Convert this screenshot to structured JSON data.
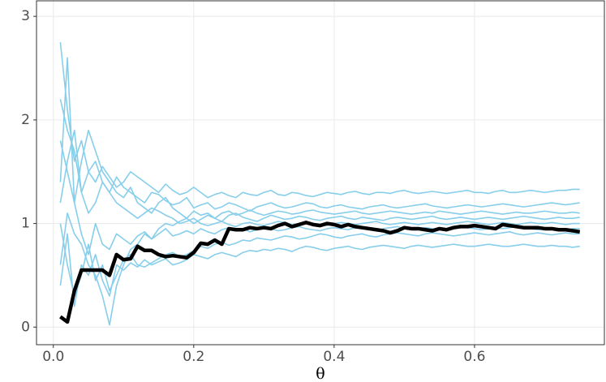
{
  "chart_data": {
    "type": "line",
    "x_label": "θ",
    "x": [
      0.01,
      0.02,
      0.03,
      0.04,
      0.05,
      0.06,
      0.07,
      0.08,
      0.09,
      0.1,
      0.11,
      0.12,
      0.13,
      0.14,
      0.15,
      0.16,
      0.17,
      0.18,
      0.19,
      0.2,
      0.21,
      0.22,
      0.23,
      0.24,
      0.25,
      0.26,
      0.27,
      0.28,
      0.29,
      0.3,
      0.31,
      0.32,
      0.33,
      0.34,
      0.35,
      0.36,
      0.37,
      0.38,
      0.39,
      0.4,
      0.41,
      0.42,
      0.43,
      0.44,
      0.45,
      0.46,
      0.47,
      0.48,
      0.49,
      0.5,
      0.51,
      0.52,
      0.53,
      0.54,
      0.55,
      0.56,
      0.57,
      0.58,
      0.59,
      0.6,
      0.61,
      0.62,
      0.63,
      0.64,
      0.65,
      0.66,
      0.67,
      0.68,
      0.69,
      0.7,
      0.71,
      0.72,
      0.73,
      0.74,
      0.75
    ],
    "series": [
      {
        "color": "#87ceeb",
        "values": [
          2.75,
          2.1,
          1.6,
          1.8,
          1.5,
          1.4,
          1.55,
          1.45,
          1.35,
          1.4,
          1.5,
          1.45,
          1.4,
          1.35,
          1.3,
          1.38,
          1.32,
          1.28,
          1.3,
          1.35,
          1.3,
          1.25,
          1.28,
          1.3,
          1.27,
          1.25,
          1.3,
          1.28,
          1.27,
          1.3,
          1.32,
          1.28,
          1.27,
          1.3,
          1.29,
          1.27,
          1.26,
          1.28,
          1.3,
          1.29,
          1.28,
          1.3,
          1.31,
          1.29,
          1.28,
          1.3,
          1.3,
          1.29,
          1.31,
          1.32,
          1.3,
          1.29,
          1.3,
          1.31,
          1.3,
          1.29,
          1.3,
          1.31,
          1.32,
          1.3,
          1.3,
          1.29,
          1.31,
          1.32,
          1.3,
          1.3,
          1.31,
          1.32,
          1.31,
          1.3,
          1.31,
          1.32,
          1.32,
          1.33,
          1.33
        ]
      },
      {
        "color": "#87ceeb",
        "values": [
          0.4,
          0.9,
          0.2,
          0.6,
          0.5,
          0.7,
          0.45,
          0.3,
          0.6,
          0.55,
          0.62,
          0.58,
          0.65,
          0.6,
          0.63,
          0.66,
          0.6,
          0.62,
          0.65,
          0.7,
          0.68,
          0.66,
          0.7,
          0.72,
          0.7,
          0.68,
          0.72,
          0.74,
          0.73,
          0.75,
          0.74,
          0.76,
          0.75,
          0.73,
          0.76,
          0.78,
          0.77,
          0.75,
          0.74,
          0.76,
          0.77,
          0.78,
          0.76,
          0.75,
          0.77,
          0.78,
          0.79,
          0.78,
          0.77,
          0.76,
          0.78,
          0.79,
          0.78,
          0.77,
          0.78,
          0.79,
          0.8,
          0.79,
          0.78,
          0.78,
          0.79,
          0.8,
          0.79,
          0.78,
          0.78,
          0.79,
          0.8,
          0.79,
          0.78,
          0.78,
          0.79,
          0.78,
          0.78,
          0.77,
          0.78
        ]
      },
      {
        "color": "#87ceeb",
        "values": [
          2.2,
          1.9,
          1.7,
          1.3,
          1.5,
          1.6,
          1.4,
          1.3,
          1.45,
          1.35,
          1.3,
          1.25,
          1.2,
          1.3,
          1.28,
          1.22,
          1.18,
          1.2,
          1.25,
          1.15,
          1.18,
          1.2,
          1.14,
          1.16,
          1.2,
          1.18,
          1.15,
          1.12,
          1.16,
          1.18,
          1.2,
          1.17,
          1.15,
          1.16,
          1.18,
          1.2,
          1.19,
          1.16,
          1.15,
          1.17,
          1.18,
          1.16,
          1.15,
          1.14,
          1.16,
          1.17,
          1.18,
          1.16,
          1.15,
          1.16,
          1.17,
          1.18,
          1.19,
          1.17,
          1.16,
          1.15,
          1.16,
          1.17,
          1.18,
          1.17,
          1.16,
          1.17,
          1.18,
          1.19,
          1.18,
          1.17,
          1.16,
          1.17,
          1.18,
          1.19,
          1.2,
          1.19,
          1.18,
          1.19,
          1.2
        ]
      },
      {
        "color": "#87ceeb",
        "values": [
          1.0,
          0.6,
          0.3,
          0.5,
          0.8,
          0.45,
          0.6,
          0.35,
          0.5,
          0.65,
          0.7,
          0.6,
          0.58,
          0.62,
          0.66,
          0.7,
          0.72,
          0.68,
          0.7,
          0.74,
          0.78,
          0.76,
          0.8,
          0.82,
          0.79,
          0.81,
          0.84,
          0.83,
          0.86,
          0.85,
          0.84,
          0.86,
          0.88,
          0.87,
          0.85,
          0.86,
          0.88,
          0.9,
          0.89,
          0.87,
          0.86,
          0.88,
          0.89,
          0.9,
          0.88,
          0.87,
          0.89,
          0.9,
          0.91,
          0.9,
          0.89,
          0.88,
          0.9,
          0.91,
          0.9,
          0.89,
          0.88,
          0.89,
          0.9,
          0.91,
          0.9,
          0.89,
          0.9,
          0.91,
          0.92,
          0.9,
          0.89,
          0.9,
          0.91,
          0.9,
          0.89,
          0.9,
          0.91,
          0.9,
          0.9
        ]
      },
      {
        "color": "#87ceeb",
        "values": [
          1.8,
          1.5,
          1.2,
          1.6,
          1.9,
          1.7,
          1.5,
          1.4,
          1.3,
          1.25,
          1.35,
          1.2,
          1.15,
          1.1,
          1.2,
          1.25,
          1.15,
          1.1,
          1.05,
          1.12,
          1.08,
          1.1,
          1.05,
          1.02,
          1.08,
          1.1,
          1.06,
          1.04,
          1.02,
          1.05,
          1.08,
          1.06,
          1.04,
          1.05,
          1.07,
          1.06,
          1.04,
          1.03,
          1.05,
          1.06,
          1.07,
          1.05,
          1.04,
          1.06,
          1.05,
          1.04,
          1.03,
          1.05,
          1.06,
          1.05,
          1.04,
          1.05,
          1.06,
          1.07,
          1.05,
          1.04,
          1.05,
          1.06,
          1.05,
          1.04,
          1.05,
          1.06,
          1.05,
          1.04,
          1.05,
          1.06,
          1.07,
          1.06,
          1.05,
          1.04,
          1.05,
          1.06,
          1.05,
          1.05,
          1.06
        ]
      },
      {
        "color": "#87ceeb",
        "values": [
          1.4,
          2.6,
          1.2,
          0.9,
          0.7,
          1.0,
          0.8,
          0.75,
          0.9,
          0.85,
          0.8,
          0.88,
          0.92,
          0.85,
          0.9,
          0.95,
          0.88,
          0.9,
          0.93,
          0.9,
          0.95,
          0.92,
          0.9,
          0.94,
          0.96,
          0.93,
          0.95,
          0.92,
          0.94,
          0.96,
          0.95,
          0.93,
          0.94,
          0.96,
          0.97,
          0.95,
          0.94,
          0.93,
          0.95,
          0.96,
          0.95,
          0.94,
          0.96,
          0.95,
          0.94,
          0.93,
          0.95,
          0.96,
          0.97,
          0.95,
          0.94,
          0.95,
          0.96,
          0.95,
          0.94,
          0.95,
          0.96,
          0.97,
          0.96,
          0.95,
          0.94,
          0.95,
          0.96,
          0.95,
          0.96,
          0.97,
          0.96,
          0.95,
          0.94,
          0.95,
          0.96,
          0.95,
          0.94,
          0.95,
          0.95
        ]
      },
      {
        "color": "#87ceeb",
        "values": [
          0.6,
          1.1,
          0.9,
          0.8,
          0.6,
          0.5,
          0.3,
          0.02,
          0.4,
          0.6,
          0.75,
          0.8,
          0.9,
          0.85,
          0.95,
          1.0,
          0.98,
          1.02,
          1.05,
          1.0,
          1.04,
          1.08,
          1.05,
          1.1,
          1.12,
          1.08,
          1.1,
          1.13,
          1.1,
          1.08,
          1.1,
          1.12,
          1.11,
          1.09,
          1.1,
          1.12,
          1.13,
          1.11,
          1.1,
          1.09,
          1.1,
          1.11,
          1.12,
          1.1,
          1.09,
          1.1,
          1.11,
          1.12,
          1.11,
          1.1,
          1.09,
          1.1,
          1.11,
          1.1,
          1.12,
          1.11,
          1.1,
          1.09,
          1.1,
          1.11,
          1.12,
          1.11,
          1.1,
          1.09,
          1.1,
          1.11,
          1.1,
          1.1,
          1.11,
          1.12,
          1.11,
          1.1,
          1.1,
          1.11,
          1.1
        ]
      },
      {
        "color": "#87ceeb",
        "values": [
          1.2,
          1.6,
          1.9,
          1.3,
          1.1,
          1.2,
          1.4,
          1.3,
          1.2,
          1.15,
          1.1,
          1.05,
          1.1,
          1.15,
          1.12,
          1.08,
          1.05,
          1.0,
          1.02,
          1.05,
          1.0,
          0.98,
          1.0,
          1.02,
          0.99,
          0.97,
          1.0,
          1.01,
          0.99,
          0.98,
          1.0,
          1.02,
          1.01,
          0.99,
          1.0,
          1.01,
          1.0,
          0.99,
          0.98,
          1.0,
          1.01,
          1.0,
          0.99,
          1.0,
          1.01,
          1.02,
          1.0,
          0.99,
          1.0,
          1.01,
          1.0,
          0.99,
          1.0,
          1.01,
          1.0,
          0.99,
          1.0,
          1.01,
          1.02,
          1.01,
          1.0,
          0.99,
          1.0,
          1.01,
          1.0,
          0.99,
          1.0,
          1.01,
          1.0,
          1.0,
          1.01,
          1.0,
          0.99,
          1.0,
          1.0
        ]
      },
      {
        "color": "#000000",
        "values": [
          0.1,
          0.05,
          0.35,
          0.55,
          0.55,
          0.55,
          0.55,
          0.5,
          0.7,
          0.65,
          0.66,
          0.78,
          0.74,
          0.74,
          0.7,
          0.68,
          0.69,
          0.68,
          0.67,
          0.72,
          0.81,
          0.8,
          0.84,
          0.8,
          0.95,
          0.94,
          0.94,
          0.96,
          0.95,
          0.96,
          0.95,
          0.98,
          1.0,
          0.97,
          0.99,
          1.01,
          0.99,
          0.98,
          1.0,
          0.99,
          0.97,
          0.99,
          0.97,
          0.96,
          0.95,
          0.94,
          0.93,
          0.91,
          0.93,
          0.96,
          0.95,
          0.95,
          0.94,
          0.93,
          0.95,
          0.94,
          0.96,
          0.97,
          0.97,
          0.98,
          0.97,
          0.96,
          0.95,
          0.99,
          0.98,
          0.97,
          0.96,
          0.96,
          0.96,
          0.95,
          0.95,
          0.94,
          0.94,
          0.93,
          0.92
        ]
      }
    ],
    "xlim": [
      -0.024,
      0.785
    ],
    "ylim": [
      -0.17,
      3.15
    ],
    "xticks": [
      {
        "value": 0,
        "label": "0.0"
      },
      0.2,
      0.4,
      0.6
    ],
    "yticks": [
      0,
      1,
      2,
      3
    ],
    "grid": true
  }
}
